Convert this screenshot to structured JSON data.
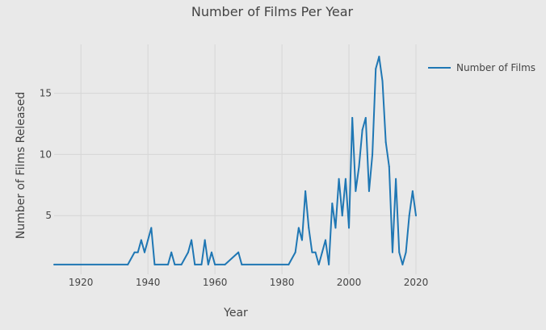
{
  "chart_data": {
    "type": "line",
    "title": "Number of Films Per Year",
    "xlabel": "Year",
    "ylabel": "Number of Films Released",
    "xlim": [
      1912,
      2020
    ],
    "ylim": [
      0.2,
      19
    ],
    "x_ticks": [
      1920,
      1940,
      1960,
      1980,
      2000,
      2020
    ],
    "x_tick_labels": [
      "1920",
      "1940",
      "1960",
      "1980",
      "2000",
      "2020"
    ],
    "y_ticks": [
      5,
      10,
      15
    ],
    "y_tick_labels": [
      "5",
      "10",
      "15"
    ],
    "grid": true,
    "legend_position": "top-right",
    "series": [
      {
        "name": "Number of Films",
        "color": "#1f77b4",
        "x": [
          1912,
          1934,
          1936,
          1937,
          1938,
          1939,
          1940,
          1941,
          1942,
          1946,
          1947,
          1948,
          1950,
          1952,
          1953,
          1954,
          1956,
          1957,
          1958,
          1959,
          1960,
          1963,
          1967,
          1968,
          1982,
          1984,
          1985,
          1986,
          1987,
          1988,
          1989,
          1990,
          1991,
          1992,
          1993,
          1994,
          1995,
          1996,
          1997,
          1998,
          1999,
          2000,
          2001,
          2002,
          2003,
          2004,
          2005,
          2006,
          2007,
          2008,
          2009,
          2010,
          2011,
          2012,
          2013,
          2014,
          2015,
          2016,
          2017,
          2018,
          2019,
          2020
        ],
        "values": [
          1,
          1,
          2,
          2,
          3,
          2,
          3,
          4,
          1,
          1,
          2,
          1,
          1,
          2,
          3,
          1,
          1,
          3,
          1,
          2,
          1,
          1,
          2,
          1,
          1,
          2,
          4,
          3,
          7,
          4,
          2,
          2,
          1,
          2,
          3,
          1,
          6,
          4,
          8,
          5,
          8,
          4,
          13,
          7,
          9,
          12,
          13,
          7,
          10,
          17,
          18,
          16,
          11,
          9,
          2,
          8,
          2,
          1,
          2,
          5,
          7,
          5
        ]
      }
    ]
  }
}
